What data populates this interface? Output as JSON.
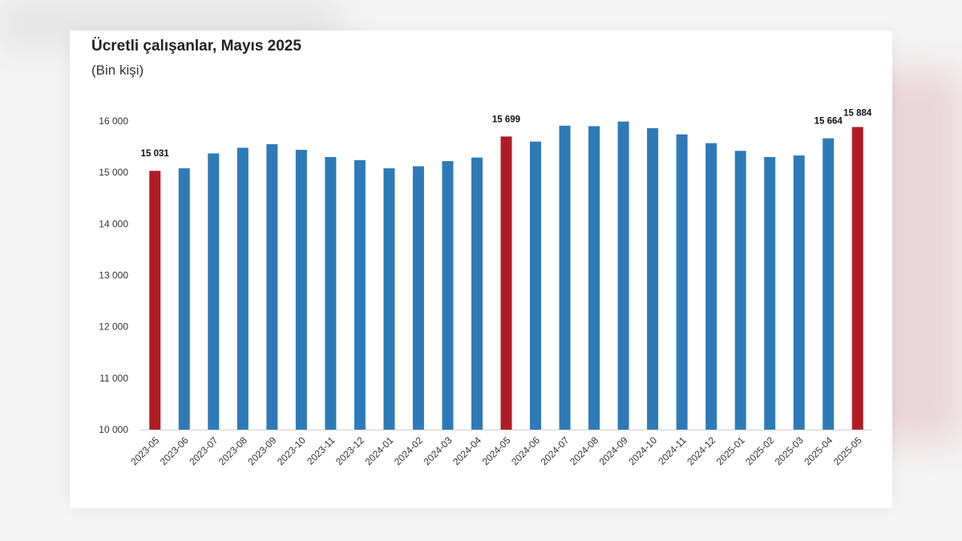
{
  "chart_data": {
    "type": "bar",
    "title": "Ücretli çalışanlar, Mayıs 2025",
    "subtitle": "(Bin kişi)",
    "xlabel": "",
    "ylabel": "",
    "ylim": [
      10000,
      16000
    ],
    "yticks": [
      10000,
      11000,
      12000,
      13000,
      14000,
      15000,
      16000
    ],
    "ytick_labels": [
      "10 000",
      "11 000",
      "12 000",
      "13 000",
      "14 000",
      "15 000",
      "16 000"
    ],
    "categories": [
      "2023-05",
      "2023-06",
      "2023-07",
      "2023-08",
      "2023-09",
      "2023-10",
      "2023-11",
      "2023-12",
      "2024-01",
      "2024-02",
      "2024-03",
      "2024-04",
      "2024-05",
      "2024-06",
      "2024-07",
      "2024-08",
      "2024-09",
      "2024-10",
      "2024-11",
      "2024-12",
      "2025-01",
      "2025-02",
      "2025-03",
      "2025-04",
      "2025-05"
    ],
    "values": [
      15031,
      15080,
      15370,
      15480,
      15550,
      15440,
      15300,
      15240,
      15080,
      15120,
      15220,
      15290,
      15699,
      15600,
      15910,
      15900,
      15990,
      15860,
      15740,
      15570,
      15420,
      15300,
      15330,
      15664,
      15884
    ],
    "highlight": [
      true,
      false,
      false,
      false,
      false,
      false,
      false,
      false,
      false,
      false,
      false,
      false,
      true,
      false,
      false,
      false,
      false,
      false,
      false,
      false,
      false,
      false,
      false,
      false,
      true
    ],
    "data_labels": [
      {
        "index": 0,
        "text": "15 031"
      },
      {
        "index": 12,
        "text": "15 699"
      },
      {
        "index": 23,
        "text": "15 664"
      },
      {
        "index": 24,
        "text": "15 884"
      }
    ],
    "colors": {
      "bar": "#2e7ab8",
      "highlight": "#b01c24"
    },
    "grid": false
  }
}
